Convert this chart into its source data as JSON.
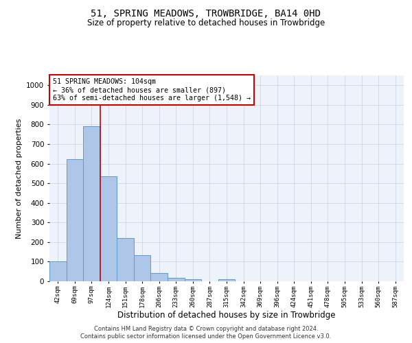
{
  "title": "51, SPRING MEADOWS, TROWBRIDGE, BA14 0HD",
  "subtitle": "Size of property relative to detached houses in Trowbridge",
  "xlabel": "Distribution of detached houses by size in Trowbridge",
  "ylabel": "Number of detached properties",
  "bar_labels": [
    "42sqm",
    "69sqm",
    "97sqm",
    "124sqm",
    "151sqm",
    "178sqm",
    "206sqm",
    "233sqm",
    "260sqm",
    "287sqm",
    "315sqm",
    "342sqm",
    "369sqm",
    "396sqm",
    "424sqm",
    "451sqm",
    "478sqm",
    "505sqm",
    "533sqm",
    "560sqm",
    "587sqm"
  ],
  "bar_values": [
    103,
    623,
    790,
    537,
    222,
    133,
    42,
    17,
    10,
    0,
    12,
    0,
    0,
    0,
    0,
    0,
    0,
    0,
    0,
    0,
    0
  ],
  "bar_color": "#aec6e8",
  "bar_edge_color": "#5b9bd5",
  "vline_color": "#cc0000",
  "ylim": [
    0,
    1050
  ],
  "yticks": [
    0,
    100,
    200,
    300,
    400,
    500,
    600,
    700,
    800,
    900,
    1000
  ],
  "annotation_text": "51 SPRING MEADOWS: 104sqm\n← 36% of detached houses are smaller (897)\n63% of semi-detached houses are larger (1,548) →",
  "annotation_box_color": "#ffffff",
  "annotation_box_edge": "#cc0000",
  "footer1": "Contains HM Land Registry data © Crown copyright and database right 2024.",
  "footer2": "Contains public sector information licensed under the Open Government Licence v3.0.",
  "background_color": "#eef2fb",
  "grid_color": "#c8d0e0"
}
